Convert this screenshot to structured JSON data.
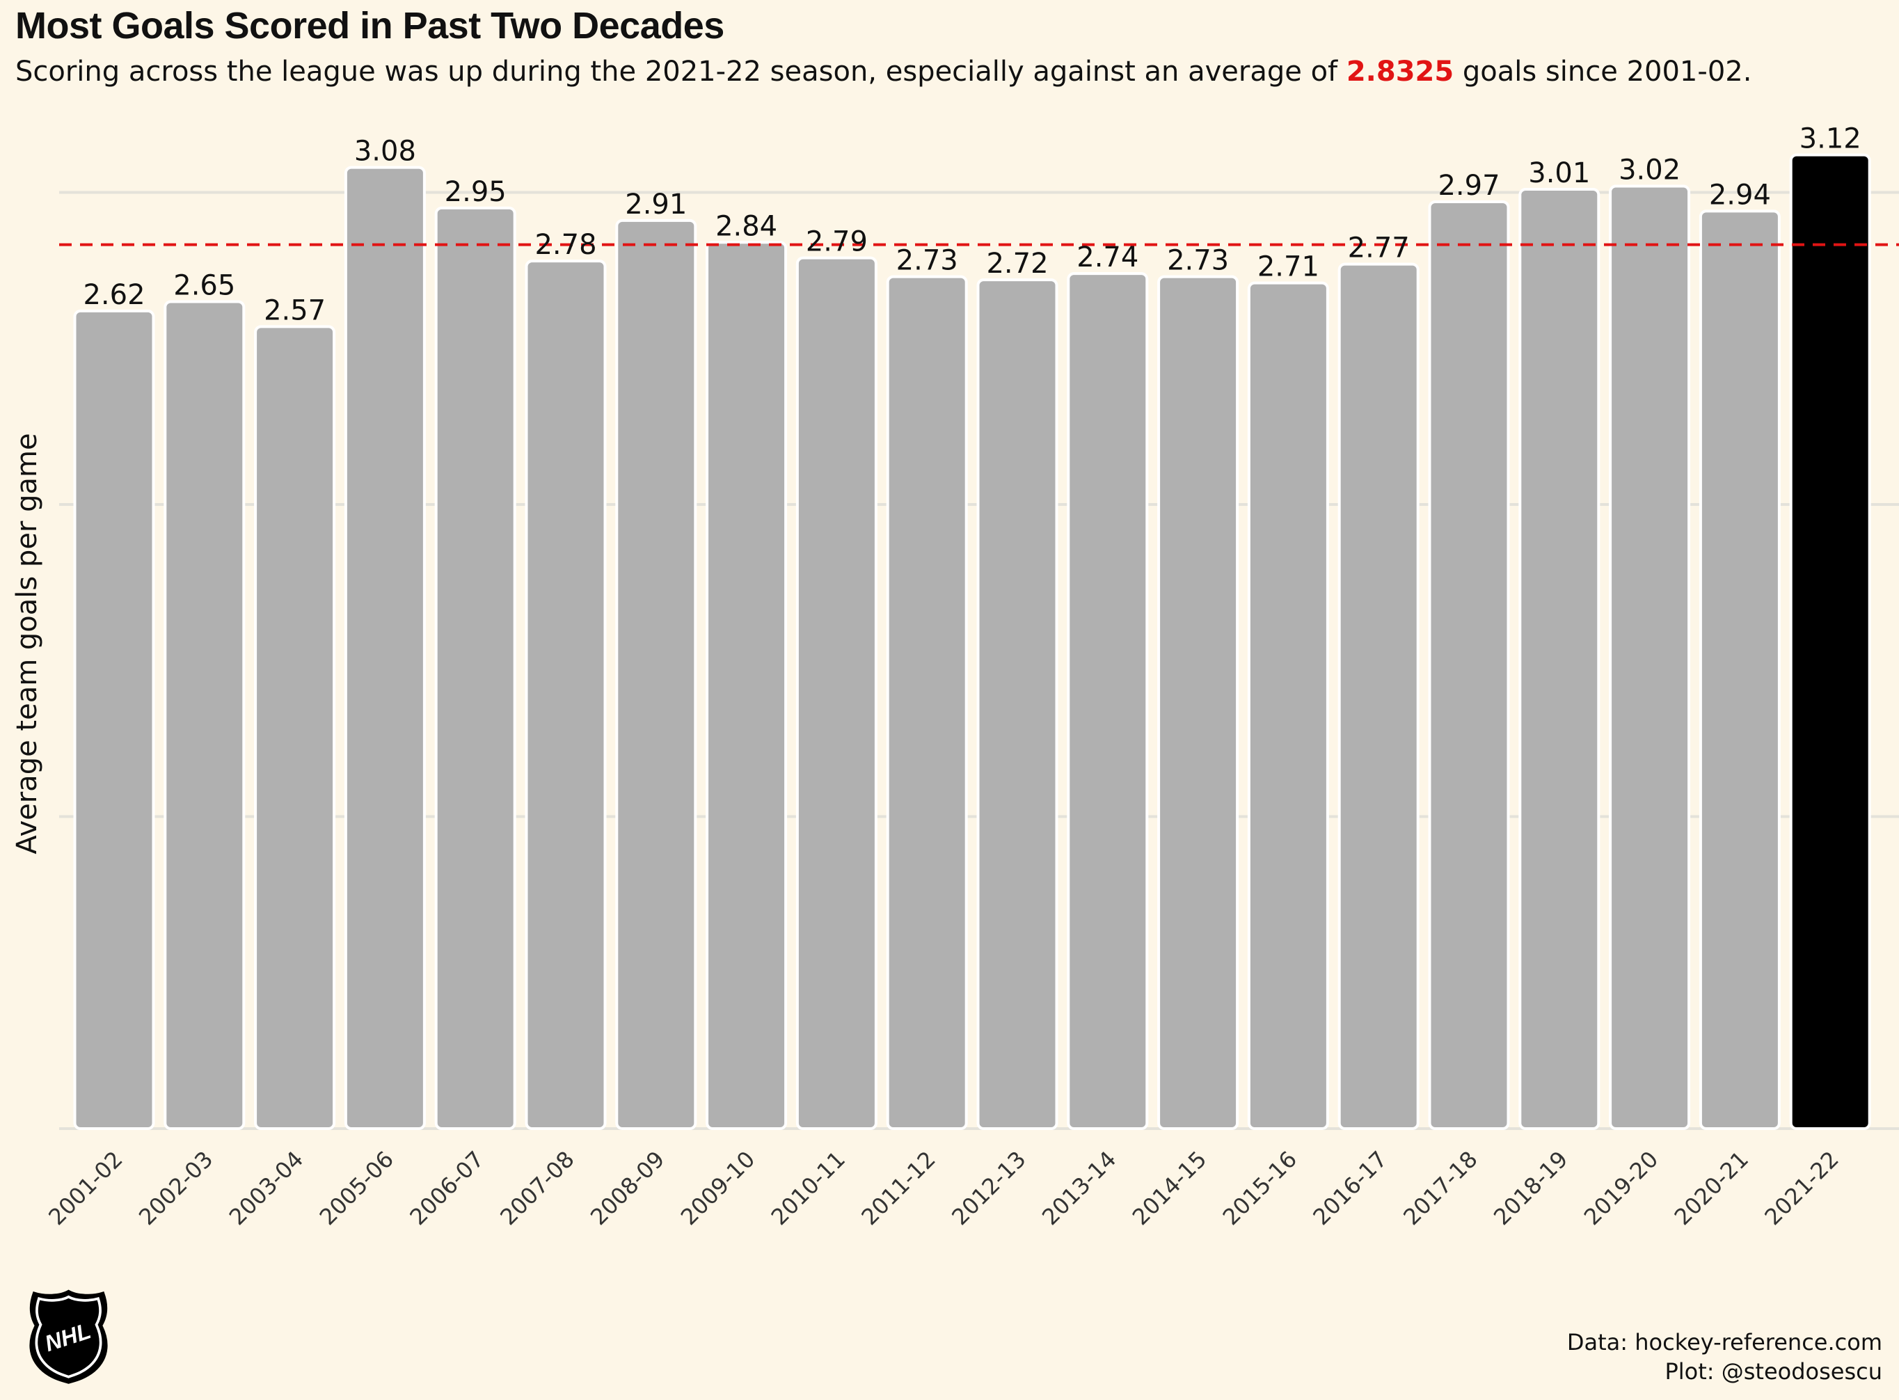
{
  "header": {
    "title": "Most Goals Scored in Past Two Decades",
    "subtitle_pre": "Scoring across the league was up during the 2021-22 season, especially against an average of ",
    "subtitle_highlight": "2.8325",
    "subtitle_post": " goals since 2001-02."
  },
  "chart_data": {
    "type": "bar",
    "ylabel": "Average team goals per game",
    "xlabel": "",
    "ylim": [
      0,
      3.3
    ],
    "grid": "horizontal",
    "categories": [
      "2001-02",
      "2002-03",
      "2003-04",
      "2005-06",
      "2006-07",
      "2007-08",
      "2008-09",
      "2009-10",
      "2010-11",
      "2011-12",
      "2012-13",
      "2013-14",
      "2014-15",
      "2015-16",
      "2016-17",
      "2017-18",
      "2018-19",
      "2019-20",
      "2020-21",
      "2021-22"
    ],
    "values": [
      2.62,
      2.65,
      2.57,
      3.08,
      2.95,
      2.78,
      2.91,
      2.84,
      2.79,
      2.73,
      2.72,
      2.74,
      2.73,
      2.71,
      2.77,
      2.97,
      3.01,
      3.02,
      2.94,
      3.12
    ],
    "value_labels": [
      "2.62",
      "2.65",
      "2.57",
      "3.08",
      "2.95",
      "2.78",
      "2.91",
      "2.84",
      "2.79",
      "2.73",
      "2.72",
      "2.74",
      "2.73",
      "2.71",
      "2.77",
      "2.97",
      "3.01",
      "3.02",
      "2.94",
      "3.12"
    ],
    "highlight_category": "2021-22",
    "reference_line": {
      "value": 2.8325,
      "style": "dashed",
      "color": "#e11414"
    },
    "colors": {
      "bar": "#b0b0b0",
      "highlight": "#000000",
      "grid": "#e4e2da",
      "background": "#fdf6e7"
    }
  },
  "footer": {
    "logo": "nhl-shield-logo",
    "source": "Data: hockey-reference.com",
    "plot_credit": "Plot: @steodosescu"
  }
}
